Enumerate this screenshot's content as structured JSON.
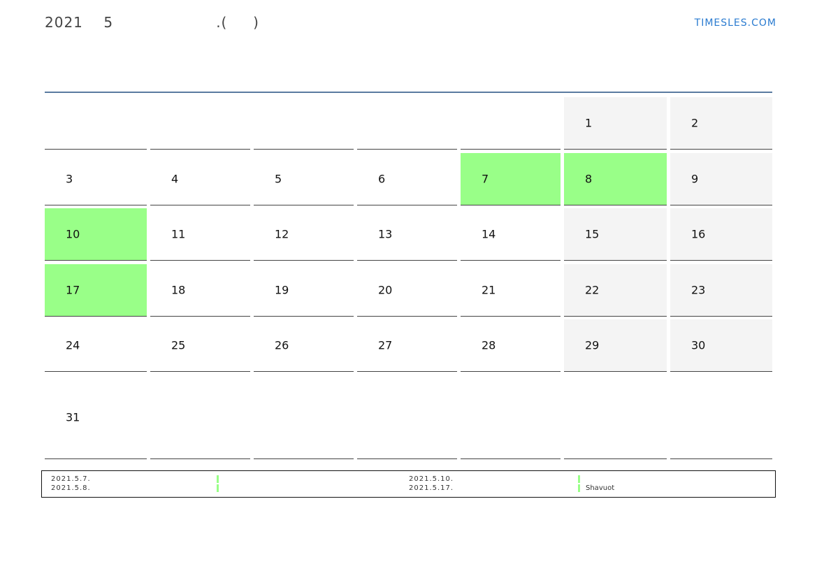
{
  "header": {
    "title": "2021    5                    .(     )",
    "brand": "TIMESLES.COM"
  },
  "colors": {
    "holiday": "#99ff88",
    "weekend": "#f4f4f4",
    "accent_line": "#5a7aa0"
  },
  "weeks": [
    [
      null,
      null,
      null,
      null,
      null,
      "1",
      "2"
    ],
    [
      "3",
      "4",
      "5",
      "6",
      "7",
      "8",
      "9"
    ],
    [
      "10",
      "11",
      "12",
      "13",
      "14",
      "15",
      "16"
    ],
    [
      "17",
      "18",
      "19",
      "20",
      "21",
      "22",
      "23"
    ],
    [
      "24",
      "25",
      "26",
      "27",
      "28",
      "29",
      "30"
    ],
    [
      "31",
      null,
      null,
      null,
      null,
      null,
      null
    ]
  ],
  "holidays": [
    "7",
    "8",
    "10",
    "17"
  ],
  "legend": {
    "col1": [
      "2021.5.7.",
      "2021.5.8."
    ],
    "col2": [
      "",
      ""
    ],
    "col3": [
      "2021.5.10.",
      "2021.5.17."
    ],
    "col4": [
      "",
      "Shavuot"
    ]
  }
}
